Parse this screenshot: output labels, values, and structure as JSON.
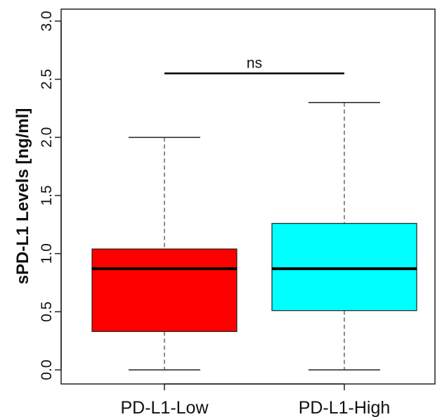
{
  "chart_data": {
    "type": "box",
    "title": "",
    "xlabel": "",
    "ylabel": "sPD-L1 Levels [ng/ml]",
    "ylim": [
      0.0,
      3.0
    ],
    "yticks": [
      0.0,
      0.5,
      1.0,
      1.5,
      2.0,
      2.5,
      3.0
    ],
    "ytick_labels": [
      "0.0",
      "0.5",
      "1.0",
      "1.5",
      "2.0",
      "2.5",
      "3.0"
    ],
    "grid": false,
    "categories": [
      "PD-L1-Low",
      "PD-L1-High"
    ],
    "boxes": [
      {
        "category": "PD-L1-Low",
        "whisker_low": 0.0,
        "q1": 0.33,
        "median": 0.87,
        "q3": 1.04,
        "whisker_high": 2.0,
        "color": "#ff0000"
      },
      {
        "category": "PD-L1-High",
        "whisker_low": 0.0,
        "q1": 0.51,
        "median": 0.87,
        "q3": 1.26,
        "whisker_high": 2.3,
        "color": "#00ffff"
      }
    ],
    "annotations": [
      {
        "text": "ns",
        "y": 2.55,
        "from": "PD-L1-Low",
        "to": "PD-L1-High"
      }
    ]
  }
}
